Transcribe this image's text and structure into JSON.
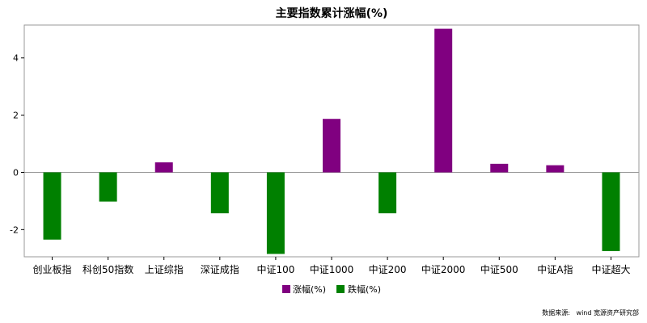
{
  "chart_data": {
    "type": "bar",
    "title": "主要指数累计涨幅(%)",
    "xlabel": "",
    "ylabel": "",
    "categories": [
      "创业板指",
      "科创50指数",
      "上证综指",
      "深证成指",
      "中证100",
      "中证1000",
      "中证200",
      "中证2000",
      "中证500",
      "中证A指",
      "中证超大"
    ],
    "values": [
      -2.35,
      -1.02,
      0.35,
      -1.43,
      -2.85,
      1.87,
      -1.43,
      5.02,
      0.3,
      0.25,
      -2.75
    ],
    "ylim": [
      -2.95,
      5.15
    ],
    "yticks": [
      -2,
      0,
      2,
      4
    ],
    "grid": false,
    "legend_position": "bottom-center",
    "series": [
      {
        "name": "涨幅(%)",
        "color": "#800080"
      },
      {
        "name": "跌幅(%)",
        "color": "#008000"
      }
    ]
  },
  "source_note": "数据来源:   wind 宽源资产研究部"
}
